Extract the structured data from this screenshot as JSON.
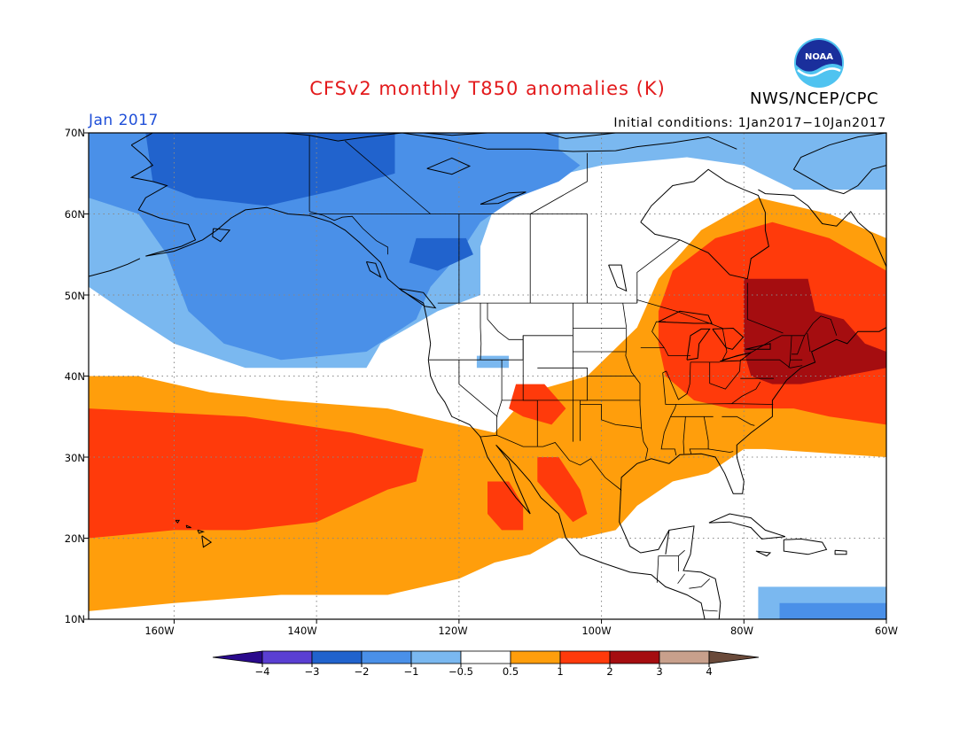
{
  "title": "CFSv2 monthly T850 anomalies (K)",
  "agency": "NWS/NCEP/CPC",
  "logo_text": "NOAA",
  "period": "Jan 2017",
  "initial_conditions": "Initial conditions: 1Jan2017−10Jan2017",
  "lat_labels": [
    "70N",
    "60N",
    "50N",
    "40N",
    "30N",
    "20N",
    "10N"
  ],
  "lon_labels": [
    "160W",
    "140W",
    "120W",
    "100W",
    "80W",
    "60W"
  ],
  "colorbar": {
    "ticks": [
      "−4",
      "−3",
      "−2",
      "−1",
      "−0.5",
      "0.5",
      "1",
      "2",
      "3",
      "4"
    ],
    "bins": [
      {
        "range": "< -4",
        "color": "#2a0a8c"
      },
      {
        "range": "-4 to -3",
        "color": "#5a3fd2"
      },
      {
        "range": "-3 to -2",
        "color": "#2163cd"
      },
      {
        "range": "-2 to -1",
        "color": "#4a90e8"
      },
      {
        "range": "-1 to -0.5",
        "color": "#7ab8f0"
      },
      {
        "range": "-0.5 to 0.5",
        "color": "#ffffff"
      },
      {
        "range": "0.5 to 1",
        "color": "#ff9e0c"
      },
      {
        "range": "1 to 2",
        "color": "#ff3a0b"
      },
      {
        "range": "2 to 3",
        "color": "#a50d10"
      },
      {
        "range": "3 to 4",
        "color": "#c8a08c"
      },
      {
        "range": "> 4",
        "color": "#6a4a3a"
      }
    ]
  },
  "map_data": {
    "extent": {
      "lon_min": -172,
      "lon_max": -60,
      "lat_min": 10,
      "lat_max": 70
    },
    "anomaly_regions": [
      {
        "level": "-1 to -0.5",
        "polygon": [
          [
            -172,
            70
          ],
          [
            -60,
            70
          ],
          [
            -60,
            63
          ],
          [
            -73,
            63
          ],
          [
            -80,
            66
          ],
          [
            -88,
            67
          ],
          [
            -100,
            66
          ],
          [
            -110,
            64
          ],
          [
            -115,
            61
          ],
          [
            -117,
            56
          ],
          [
            -117,
            50
          ],
          [
            -123,
            48
          ],
          [
            -131,
            44
          ],
          [
            -133,
            41
          ],
          [
            -150,
            41
          ],
          [
            -160,
            44
          ],
          [
            -167,
            48
          ],
          [
            -172,
            51
          ]
        ]
      },
      {
        "level": "-1 to -0.5",
        "polygon": [
          [
            -78,
            14
          ],
          [
            -60,
            14
          ],
          [
            -60,
            10
          ],
          [
            -78,
            10
          ]
        ]
      },
      {
        "level": "-1 to -0.5",
        "polygon": [
          [
            -117.5,
            42.5
          ],
          [
            -113,
            42.5
          ],
          [
            -113,
            41
          ],
          [
            -117.5,
            41
          ]
        ]
      },
      {
        "level": "-2 to -1",
        "polygon": [
          [
            -172,
            70
          ],
          [
            -106,
            70
          ],
          [
            -106,
            68
          ],
          [
            -103,
            66
          ],
          [
            -106,
            64
          ],
          [
            -112,
            62
          ],
          [
            -117,
            59
          ],
          [
            -120,
            55
          ],
          [
            -124,
            51
          ],
          [
            -126,
            47
          ],
          [
            -133,
            43
          ],
          [
            -145,
            42
          ],
          [
            -153,
            44
          ],
          [
            -158,
            48
          ],
          [
            -161,
            55
          ],
          [
            -165,
            60
          ],
          [
            -172,
            62
          ]
        ]
      },
      {
        "level": "-2 to -1",
        "polygon": [
          [
            -75,
            12
          ],
          [
            -60,
            12
          ],
          [
            -60,
            10
          ],
          [
            -75,
            10
          ]
        ]
      },
      {
        "level": "-3 to -2",
        "polygon": [
          [
            -164,
            70
          ],
          [
            -129,
            70
          ],
          [
            -129,
            65
          ],
          [
            -137,
            63
          ],
          [
            -147,
            61
          ],
          [
            -157,
            62
          ],
          [
            -163,
            64
          ]
        ]
      },
      {
        "level": "-3 to -2",
        "polygon": [
          [
            -126,
            57
          ],
          [
            -119,
            57
          ],
          [
            -118,
            55
          ],
          [
            -123,
            53
          ],
          [
            -127,
            54
          ]
        ]
      },
      {
        "level": "0.5 to 1",
        "polygon": [
          [
            -172,
            40
          ],
          [
            -165,
            40
          ],
          [
            -155,
            38
          ],
          [
            -145,
            37
          ],
          [
            -130,
            36
          ],
          [
            -120,
            34
          ],
          [
            -115,
            33
          ],
          [
            -110,
            38
          ],
          [
            -102,
            40
          ],
          [
            -95,
            46
          ],
          [
            -92,
            52
          ],
          [
            -86,
            58
          ],
          [
            -78,
            62
          ],
          [
            -68,
            60
          ],
          [
            -60,
            57
          ],
          [
            -60,
            30
          ],
          [
            -77,
            31
          ],
          [
            -80,
            31
          ],
          [
            -85,
            28
          ],
          [
            -90,
            27
          ],
          [
            -95,
            24
          ],
          [
            -98,
            21
          ],
          [
            -103,
            20
          ],
          [
            -106,
            20
          ],
          [
            -110,
            18
          ],
          [
            -115,
            17
          ],
          [
            -120,
            15
          ],
          [
            -125,
            14
          ],
          [
            -130,
            13
          ],
          [
            -145,
            13
          ],
          [
            -160,
            12
          ],
          [
            -172,
            11
          ]
        ]
      },
      {
        "level": "1 to 2",
        "polygon": [
          [
            -172,
            36
          ],
          [
            -150,
            35
          ],
          [
            -135,
            33
          ],
          [
            -125,
            31
          ],
          [
            -126,
            27
          ],
          [
            -130,
            26
          ],
          [
            -135,
            24
          ],
          [
            -140,
            22
          ],
          [
            -150,
            21
          ],
          [
            -160,
            21
          ],
          [
            -172,
            20
          ]
        ]
      },
      {
        "level": "1 to 2",
        "polygon": [
          [
            -90,
            53
          ],
          [
            -84,
            57
          ],
          [
            -76,
            59
          ],
          [
            -68,
            57
          ],
          [
            -60,
            53
          ],
          [
            -60,
            34
          ],
          [
            -68,
            35
          ],
          [
            -73,
            36
          ],
          [
            -77,
            36
          ],
          [
            -82,
            36
          ],
          [
            -87,
            37
          ],
          [
            -91,
            40
          ],
          [
            -92,
            44
          ],
          [
            -92,
            48
          ]
        ]
      },
      {
        "level": "1 to 2",
        "polygon": [
          [
            -112,
            39
          ],
          [
            -108,
            39
          ],
          [
            -105,
            36
          ],
          [
            -107,
            34
          ],
          [
            -111,
            35
          ],
          [
            -113,
            36
          ]
        ]
      },
      {
        "level": "1 to 2",
        "polygon": [
          [
            -109,
            30
          ],
          [
            -106,
            30
          ],
          [
            -103,
            26
          ],
          [
            -102,
            23
          ],
          [
            -104,
            22
          ],
          [
            -107,
            25
          ],
          [
            -109,
            27
          ]
        ]
      },
      {
        "level": "1 to 2",
        "polygon": [
          [
            -116,
            27
          ],
          [
            -113,
            27
          ],
          [
            -111,
            24
          ],
          [
            -111,
            21
          ],
          [
            -114,
            21
          ],
          [
            -116,
            23
          ]
        ]
      },
      {
        "level": "2 to 3",
        "polygon": [
          [
            -80,
            52
          ],
          [
            -71,
            52
          ],
          [
            -70,
            48
          ],
          [
            -66,
            47
          ],
          [
            -63,
            44
          ],
          [
            -60,
            43
          ],
          [
            -60,
            41
          ],
          [
            -66,
            40
          ],
          [
            -72,
            39
          ],
          [
            -76,
            39
          ],
          [
            -79,
            40
          ],
          [
            -80,
            43
          ]
        ]
      }
    ]
  }
}
